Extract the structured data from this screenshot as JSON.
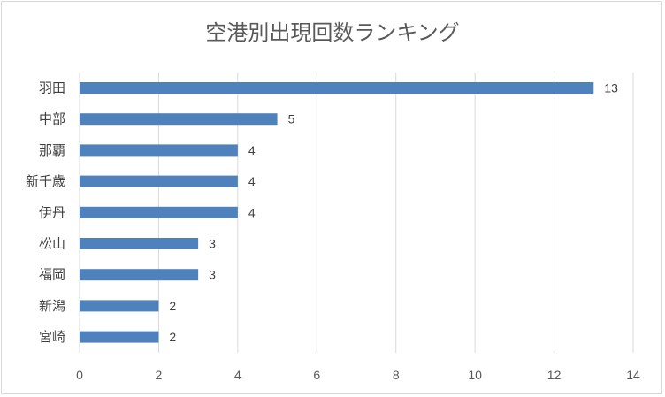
{
  "chart_data": {
    "type": "bar",
    "orientation": "horizontal",
    "title": "空港別出現回数ランキング",
    "categories": [
      "羽田",
      "中部",
      "那覇",
      "新千歳",
      "伊丹",
      "松山",
      "福岡",
      "新潟",
      "宮崎"
    ],
    "values": [
      13,
      5,
      4,
      4,
      4,
      3,
      3,
      2,
      2
    ],
    "xlim": [
      0,
      14
    ],
    "xticks": [
      0,
      2,
      4,
      6,
      8,
      10,
      12,
      14
    ],
    "grid": true,
    "legend": "none",
    "bar_color": "#4f81bd",
    "grid_color": "#d9d9d9",
    "text_color": "#404040"
  }
}
